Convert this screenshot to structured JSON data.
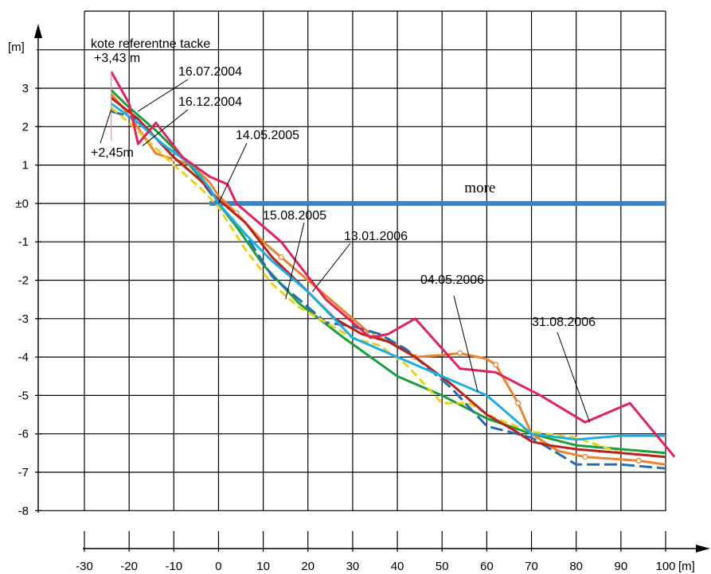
{
  "chart_data": {
    "type": "line",
    "x_unit": "[m]",
    "y_unit": "[m]",
    "xlim": [
      -30,
      100
    ],
    "ylim": [
      -8,
      4
    ],
    "x_ticks": [
      -30,
      -20,
      -10,
      0,
      10,
      20,
      30,
      40,
      50,
      60,
      70,
      80,
      90,
      100
    ],
    "x_tick_labels": [
      "-30",
      "-20",
      "-10",
      "0",
      "10",
      "20",
      "30",
      "40",
      "50",
      "60",
      "70",
      "80",
      "90",
      "100"
    ],
    "y_ticks": [
      3,
      2,
      1,
      0,
      -1,
      -2,
      -3,
      -4,
      -5,
      -6,
      -7,
      -8
    ],
    "y_tick_labels": [
      "3",
      "2",
      "1",
      "±0",
      "-1",
      "-2",
      "-3",
      "-4",
      "-5",
      "-6",
      "-7",
      "-8"
    ],
    "grid": true,
    "sea": {
      "label": "more",
      "y": 0,
      "x_start": -2,
      "x_end": 100,
      "color": "#3b82c4"
    },
    "reference": {
      "title": "kote referentne tacke",
      "upper_label": "+3,43 m",
      "lower_label": "+2,45m",
      "x": -24,
      "y_top": 3.43,
      "y_bottom": 2.45
    },
    "series": [
      {
        "name": "16.07.2004",
        "color": "#1a9e3c",
        "dash": "",
        "x": [
          -24,
          -20,
          -14,
          -8,
          -2,
          0,
          4,
          10,
          18,
          28,
          40,
          50,
          60,
          70,
          80,
          100
        ],
        "y": [
          2.95,
          2.5,
          1.9,
          1.2,
          0.4,
          0.0,
          -0.6,
          -1.6,
          -2.6,
          -3.5,
          -4.5,
          -5.0,
          -5.6,
          -6.0,
          -6.3,
          -6.5
        ]
      },
      {
        "name": "16.12.2004",
        "color": "#e8832e",
        "dash": "",
        "markers": true,
        "x": [
          -24,
          -20,
          -14,
          -10,
          -6,
          -2,
          0,
          4,
          10,
          14,
          20,
          26,
          34,
          40,
          44,
          50,
          54,
          60,
          62,
          67,
          70,
          76,
          82,
          88,
          94,
          100
        ],
        "y": [
          2.85,
          2.3,
          1.3,
          1.15,
          1.0,
          0.55,
          0.2,
          -0.25,
          -1.0,
          -1.4,
          -2.0,
          -2.6,
          -3.4,
          -3.7,
          -4.0,
          -3.95,
          -3.9,
          -4.05,
          -4.2,
          -5.2,
          -6.0,
          -6.45,
          -6.6,
          -6.65,
          -6.7,
          -6.8
        ]
      },
      {
        "name": "14.05.2005",
        "color": "#2a6bb5",
        "dash": "16 6",
        "x": [
          -24,
          -18,
          -10,
          -4,
          0,
          6,
          12,
          18,
          24,
          30,
          36,
          42,
          52,
          60,
          70,
          80,
          90,
          100
        ],
        "y": [
          2.4,
          2.2,
          1.2,
          0.6,
          0.0,
          -0.8,
          -1.9,
          -2.5,
          -3.1,
          -3.2,
          -3.4,
          -3.8,
          -4.8,
          -5.8,
          -6.1,
          -6.8,
          -6.8,
          -6.9
        ]
      },
      {
        "name": "15.08.2005",
        "color": "#e8d21f",
        "dash": "10 5",
        "x": [
          -24,
          -20,
          -10,
          -4,
          0,
          6,
          12,
          18,
          24,
          30,
          36,
          42,
          50,
          56,
          62,
          70,
          80,
          90,
          100
        ],
        "y": [
          2.5,
          2.1,
          1.0,
          0.4,
          -0.1,
          -1.2,
          -2.1,
          -2.7,
          -3.1,
          -3.5,
          -3.7,
          -4.2,
          -5.2,
          -5.2,
          -5.6,
          -5.95,
          -6.1,
          -6.5,
          -6.6
        ]
      },
      {
        "name": "13.01.2006",
        "color": "#b8231a",
        "dash": "",
        "x": [
          -24,
          -18,
          -10,
          -4,
          0,
          6,
          12,
          20,
          26,
          32,
          38,
          44,
          52,
          60,
          66,
          70,
          74,
          80,
          90,
          100
        ],
        "y": [
          2.75,
          2.2,
          1.2,
          0.6,
          0.1,
          -0.5,
          -1.4,
          -2.3,
          -3.0,
          -3.4,
          -3.6,
          -4.0,
          -4.7,
          -5.5,
          -5.9,
          -6.2,
          -6.3,
          -6.4,
          -6.5,
          -6.6
        ]
      },
      {
        "name": "04.05.2006",
        "color": "#1eaee4",
        "dash": "",
        "x": [
          -24,
          -18,
          -12,
          -6,
          -2,
          0,
          6,
          12,
          20,
          30,
          40,
          50,
          60,
          70,
          80,
          90,
          100
        ],
        "y": [
          2.6,
          2.1,
          1.5,
          1.0,
          0.4,
          0.0,
          -0.8,
          -1.5,
          -2.3,
          -3.5,
          -4.0,
          -4.5,
          -5.0,
          -6.0,
          -6.15,
          -6.05,
          -6.05
        ]
      },
      {
        "name": "31.08.2006",
        "color": "#e0235a",
        "dash": "",
        "x": [
          -24,
          -20,
          -18,
          -14,
          -8,
          -2,
          2,
          4,
          14,
          24,
          34,
          38,
          44,
          54,
          62,
          72,
          82,
          92,
          102
        ],
        "y": [
          3.43,
          2.6,
          1.55,
          2.1,
          1.2,
          0.7,
          0.5,
          0.0,
          -1.0,
          -2.5,
          -3.5,
          -3.4,
          -3.0,
          -4.3,
          -4.4,
          -5.0,
          -5.7,
          -5.2,
          -6.6
        ]
      }
    ],
    "annotations": [
      {
        "text": "16.07.2004",
        "series": "16.07.2004",
        "at": [
          -18,
          2.4
        ]
      },
      {
        "text": "16.12.2004",
        "series": "16.12.2004",
        "at": [
          -17,
          1.5
        ]
      },
      {
        "text": "14.05.2005",
        "series": "14.05.2005",
        "at": [
          0,
          0
        ]
      },
      {
        "text": "15.08.2005",
        "series": "15.08.2005",
        "at": [
          15,
          -2.5
        ]
      },
      {
        "text": "13.01.2006",
        "series": "13.01.2006",
        "at": [
          21,
          -2.3
        ]
      },
      {
        "text": "04.05.2006",
        "series": "04.05.2006",
        "at": [
          58,
          -4.9
        ]
      },
      {
        "text": "31.08.2006",
        "series": "31.08.2006",
        "at": [
          83,
          -5.7
        ]
      }
    ]
  }
}
